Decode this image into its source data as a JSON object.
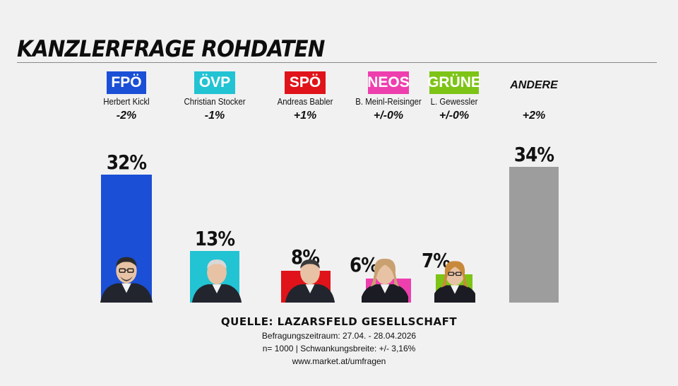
{
  "chart_data": {
    "type": "bar",
    "title": "KANZLERFRAGE ROHDATEN",
    "unit": "%",
    "categories": [
      "FPÖ",
      "ÖVP",
      "SPÖ",
      "NEOS",
      "GRÜNE",
      "ANDERE"
    ],
    "values": [
      32,
      13,
      8,
      6,
      7,
      34
    ],
    "value_labels": [
      "32%",
      "13%",
      "8%",
      "6%",
      "7%",
      "34%"
    ],
    "candidates": [
      "Herbert Kickl",
      "Christian Stocker",
      "Andreas Babler",
      "B. Meinl-Reisinger",
      "L. Gewessler",
      ""
    ],
    "changes": [
      "-2%",
      "-1%",
      "+1%",
      "+/-0%",
      "+/-0%",
      "+2%"
    ],
    "colors": [
      "#1a4fd6",
      "#22c3d3",
      "#e0131a",
      "#ee3fae",
      "#7dc417",
      "#9d9d9d"
    ],
    "ylim": [
      0,
      34
    ]
  },
  "source": {
    "title": "QUELLE: LAZARSFELD GESELLSCHAFT",
    "period": "Befragungszeitraum: 27.04. - 28.04.2026",
    "sample": "n= 1000 | Schwankungsbreite: +/- 3,16%",
    "url": "www.market.at/umfragen"
  }
}
